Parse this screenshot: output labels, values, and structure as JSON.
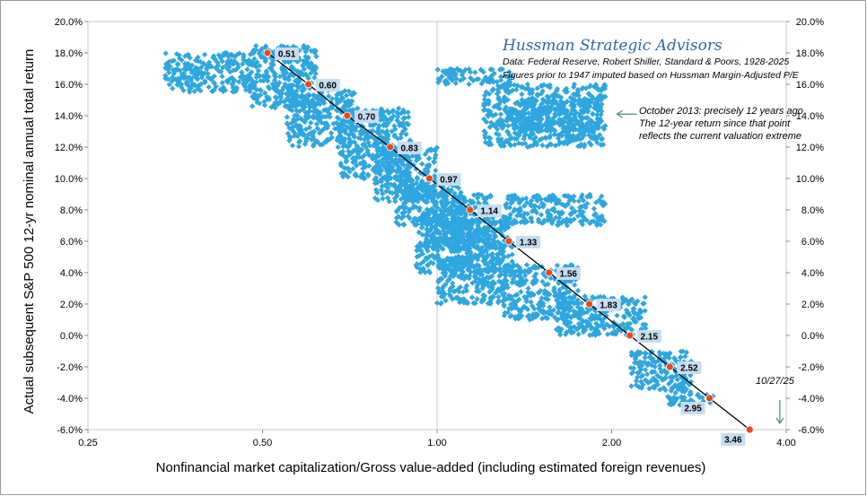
{
  "chart_data": {
    "type": "scatter",
    "title": "Hussman Strategic Advisors",
    "source_lines": [
      "Data: Federal Reserve, Robert Shiller, Standard & Poors, 1928-2025",
      "Figures prior to 1947 imputed based on Hussman Margin-Adjusted P/E"
    ],
    "xlabel": "Nonfinancial market capitalization/Gross value-added (including estimated foreign revenues)",
    "ylabel": "Actual subsequent S&P 500 12-yr nominal annual total return",
    "x_scale": "log2",
    "xlim": [
      0.25,
      4.0
    ],
    "ylim": [
      -0.06,
      0.2
    ],
    "x_ticks": [
      "0.25",
      "0.50",
      "1.00",
      "2.00",
      "4.00"
    ],
    "x_tick_values": [
      0.25,
      0.5,
      1.0,
      2.0,
      4.0
    ],
    "y_ticks": [
      "20.0%",
      "18.0%",
      "16.0%",
      "14.0%",
      "12.0%",
      "10.0%",
      "8.0%",
      "6.0%",
      "4.0%",
      "2.0%",
      "0.0%",
      "-2.0%",
      "-4.0%",
      "-6.0%"
    ],
    "y_tick_values": [
      0.2,
      0.18,
      0.16,
      0.14,
      0.12,
      0.1,
      0.08,
      0.06,
      0.04,
      0.02,
      0.0,
      -0.02,
      -0.04,
      -0.06
    ],
    "grid": "vertical at 1.00 only",
    "fit_line": {
      "color": "#000000",
      "points": [
        {
          "x": 0.51,
          "y": 0.18,
          "label": "0.51"
        },
        {
          "x": 0.6,
          "y": 0.16,
          "label": "0.60"
        },
        {
          "x": 0.7,
          "y": 0.14,
          "label": "0.70"
        },
        {
          "x": 0.83,
          "y": 0.12,
          "label": "0.83"
        },
        {
          "x": 0.97,
          "y": 0.1,
          "label": "0.97"
        },
        {
          "x": 1.14,
          "y": 0.08,
          "label": "1.14"
        },
        {
          "x": 1.33,
          "y": 0.06,
          "label": "1.33"
        },
        {
          "x": 1.56,
          "y": 0.04,
          "label": "1.56"
        },
        {
          "x": 1.83,
          "y": 0.02,
          "label": "1.83"
        },
        {
          "x": 2.15,
          "y": 0.0,
          "label": "2.15"
        },
        {
          "x": 2.52,
          "y": -0.02,
          "label": "2.52"
        },
        {
          "x": 2.95,
          "y": -0.04,
          "label": "2.95"
        },
        {
          "x": 3.46,
          "y": -0.06,
          "label": "3.46"
        }
      ]
    },
    "scatter_clusters": [
      {
        "x": [
          0.34,
          0.48
        ],
        "y": [
          0.155,
          0.18
        ]
      },
      {
        "x": [
          0.48,
          0.62
        ],
        "y": [
          0.145,
          0.185
        ]
      },
      {
        "x": [
          0.55,
          0.72
        ],
        "y": [
          0.12,
          0.16
        ]
      },
      {
        "x": [
          0.68,
          0.9
        ],
        "y": [
          0.1,
          0.145
        ]
      },
      {
        "x": [
          0.78,
          1.0
        ],
        "y": [
          0.085,
          0.12
        ]
      },
      {
        "x": [
          0.85,
          1.1
        ],
        "y": [
          0.07,
          0.1
        ]
      },
      {
        "x": [
          0.95,
          1.25
        ],
        "y": [
          0.055,
          0.09
        ]
      },
      {
        "x": [
          0.92,
          1.15
        ],
        "y": [
          0.04,
          0.075
        ]
      },
      {
        "x": [
          1.05,
          1.35
        ],
        "y": [
          0.04,
          0.075
        ]
      },
      {
        "x": [
          1.0,
          1.3
        ],
        "y": [
          0.02,
          0.05
        ]
      },
      {
        "x": [
          1.3,
          1.75
        ],
        "y": [
          0.01,
          0.045
        ]
      },
      {
        "x": [
          1.6,
          2.3
        ],
        "y": [
          0.0,
          0.025
        ]
      },
      {
        "x": [
          1.2,
          1.95
        ],
        "y": [
          0.12,
          0.16
        ]
      },
      {
        "x": [
          1.35,
          1.9
        ],
        "y": [
          0.13,
          0.15
        ]
      },
      {
        "x": [
          1.3,
          1.95
        ],
        "y": [
          0.07,
          0.09
        ]
      },
      {
        "x": [
          1.0,
          1.35
        ],
        "y": [
          0.16,
          0.17
        ]
      },
      {
        "x": [
          2.15,
          2.75
        ],
        "y": [
          -0.035,
          -0.01
        ]
      },
      {
        "x": [
          2.5,
          3.0
        ],
        "y": [
          -0.045,
          -0.035
        ]
      }
    ],
    "point_color": "#2ea6df",
    "fit_point_color": "#e8491c",
    "label_box_color": "#c6dcf0",
    "annotations": [
      {
        "lines": [
          "October 2013: precisely 12 years ago",
          "The 12-year return since that point",
          "reflects the current valuation extreme"
        ],
        "points_to": {
          "x": 2.0,
          "y": 0.141
        }
      },
      {
        "lines": [
          "10/27/25"
        ],
        "points_to": {
          "x": 3.9,
          "y": -0.056
        }
      }
    ],
    "brand_color": "#2c6aa0",
    "annotation_arrow_color": "#3f8e8a"
  }
}
